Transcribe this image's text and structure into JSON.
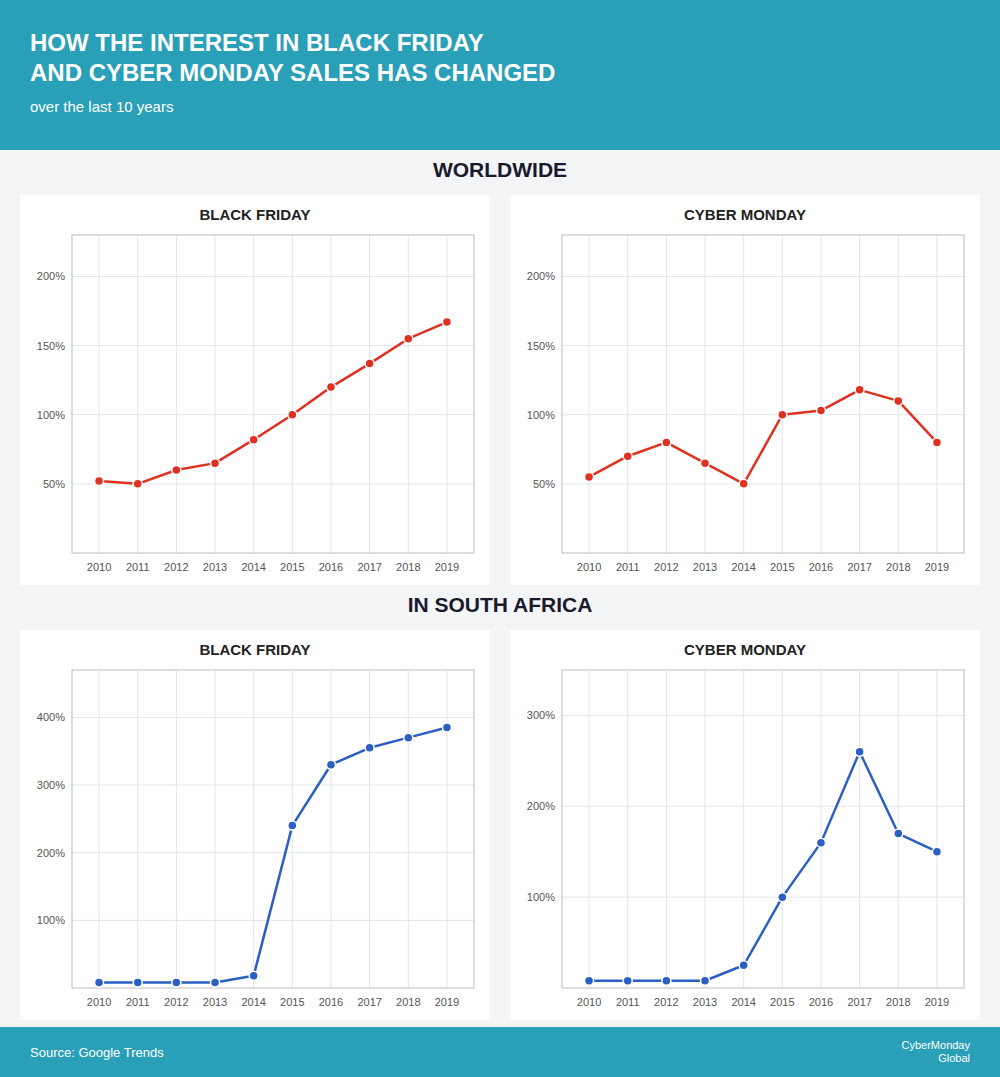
{
  "title": "HOW THE INTEREST IN BLACK FRIDAY\nAND CYBER MONDAY SALES HAS CHANGED",
  "subtitle": "over the last 10 years",
  "annotations": [
    "WORLDWIDE",
    "IN SOUTH AFRICA",
    "Source: Google Trends",
    "CyberMonday\nGlobal"
  ],
  "chart_data": [
    {
      "type": "line",
      "title": "BLACK FRIDAY",
      "x": [
        2010,
        2011,
        2012,
        2013,
        2014,
        2015,
        2016,
        2017,
        2018,
        2019
      ],
      "values": [
        52,
        50,
        60,
        65,
        82,
        100,
        120,
        137,
        155,
        167
      ],
      "color": "#e03020",
      "marker": "circle",
      "xlim": [
        2009.3,
        2019.7
      ],
      "xticks": [
        2010,
        2011,
        2012,
        2013,
        2014,
        2015,
        2016,
        2017,
        2018,
        2019
      ],
      "ylim": [
        0,
        230
      ],
      "yticks": [
        {
          "value": 50,
          "label": "50%"
        },
        {
          "value": 100,
          "label": "100%"
        },
        {
          "value": 150,
          "label": "150%"
        },
        {
          "value": 200,
          "label": "200%"
        }
      ],
      "grid": true
    },
    {
      "type": "line",
      "title": "CYBER MONDAY",
      "x": [
        2010,
        2011,
        2012,
        2013,
        2014,
        2015,
        2016,
        2017,
        2018,
        2019
      ],
      "values": [
        55,
        70,
        80,
        65,
        50,
        100,
        103,
        118,
        110,
        80
      ],
      "color": "#e03020",
      "marker": "circle",
      "xlim": [
        2009.3,
        2019.7
      ],
      "xticks": [
        2010,
        2011,
        2012,
        2013,
        2014,
        2015,
        2016,
        2017,
        2018,
        2019
      ],
      "ylim": [
        0,
        230
      ],
      "yticks": [
        {
          "value": 50,
          "label": "50%"
        },
        {
          "value": 100,
          "label": "100%"
        },
        {
          "value": 150,
          "label": "150%"
        },
        {
          "value": 200,
          "label": "200%"
        }
      ],
      "grid": true
    },
    {
      "type": "line",
      "title": "BLACK FRIDAY",
      "x": [
        2010,
        2011,
        2012,
        2013,
        2014,
        2015,
        2016,
        2017,
        2018,
        2019
      ],
      "values": [
        8,
        8,
        8,
        8,
        18,
        240,
        330,
        355,
        370,
        385
      ],
      "color": "#2b5fc4",
      "marker": "circle",
      "xlim": [
        2009.3,
        2019.7
      ],
      "xticks": [
        2010,
        2011,
        2012,
        2013,
        2014,
        2015,
        2016,
        2017,
        2018,
        2019
      ],
      "ylim": [
        0,
        470
      ],
      "yticks": [
        {
          "value": 100,
          "label": "100%"
        },
        {
          "value": 200,
          "label": "200%"
        },
        {
          "value": 300,
          "label": "300%"
        },
        {
          "value": 400,
          "label": "400%"
        }
      ],
      "grid": true
    },
    {
      "type": "line",
      "title": "CYBER MONDAY",
      "x": [
        2010,
        2011,
        2012,
        2013,
        2014,
        2015,
        2016,
        2017,
        2018,
        2019
      ],
      "values": [
        8,
        8,
        8,
        8,
        25,
        100,
        160,
        260,
        170,
        150
      ],
      "color": "#2b5fc4",
      "marker": "circle",
      "xlim": [
        2009.3,
        2019.7
      ],
      "xticks": [
        2010,
        2011,
        2012,
        2013,
        2014,
        2015,
        2016,
        2017,
        2018,
        2019
      ],
      "ylim": [
        0,
        350
      ],
      "yticks": [
        {
          "value": 100,
          "label": "100%"
        },
        {
          "value": 200,
          "label": "200%"
        },
        {
          "value": 300,
          "label": "300%"
        }
      ],
      "grid": true
    }
  ]
}
